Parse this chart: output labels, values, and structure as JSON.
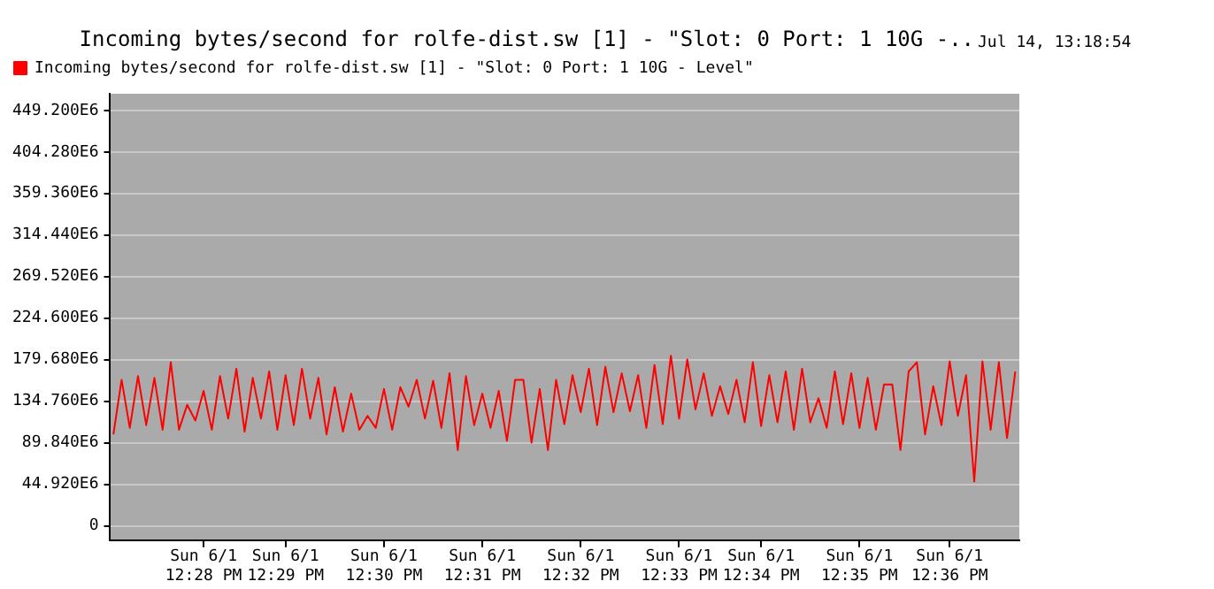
{
  "chart_data": {
    "type": "line",
    "title": "Incoming bytes/second for rolfe-dist.sw [1] - \"Slot: 0 Port: 1 10G -..",
    "annotations": [
      "Jul 14, 13:18:54"
    ],
    "legend": "top left",
    "grid": "y",
    "marker": "none",
    "line_style": "solid",
    "categories": [
      null,
      null,
      null,
      null,
      null,
      null,
      null,
      null,
      null,
      null,
      null,
      "Sun 6/1\n12:28 PM",
      null,
      null,
      null,
      null,
      null,
      null,
      null,
      null,
      null,
      "Sun 6/1\n12:29 PM",
      null,
      null,
      null,
      null,
      null,
      null,
      null,
      null,
      null,
      null,
      null,
      "Sun 6/1\n12:30 PM",
      null,
      null,
      null,
      null,
      null,
      null,
      null,
      null,
      null,
      null,
      null,
      "Sun 6/1\n12:31 PM",
      null,
      null,
      null,
      null,
      null,
      null,
      null,
      null,
      null,
      null,
      null,
      "Sun 6/1\n12:32 PM",
      null,
      null,
      null,
      null,
      null,
      null,
      null,
      null,
      null,
      null,
      null,
      "Sun 6/1\n12:33 PM",
      null,
      null,
      null,
      null,
      null,
      null,
      null,
      null,
      null,
      "Sun 6/1\n12:34 PM",
      null,
      null,
      null,
      null,
      null,
      null,
      null,
      null,
      null,
      null,
      null,
      "Sun 6/1\n12:35 PM",
      null,
      null,
      null,
      null,
      null,
      null,
      null,
      null,
      null,
      null,
      "Sun 6/1\n12:36 PM",
      null,
      null,
      null,
      null,
      null,
      null,
      null,
      null
    ],
    "ylim": [
      -15400000.0,
      467200000.0
    ],
    "yticks": [
      0,
      {
        "value": 44920000.0,
        "label": "44.920E6"
      },
      {
        "value": 89840000.0,
        "label": "89.840E6"
      },
      {
        "value": 134760000.0,
        "label": "134.760E6"
      },
      {
        "value": 179680000.0,
        "label": "179.680E6"
      },
      {
        "value": 224600000.0,
        "label": "224.600E6"
      },
      {
        "value": 269520000.0,
        "label": "269.520E6"
      },
      {
        "value": 314440000.0,
        "label": "314.440E6"
      },
      {
        "value": 359360000.0,
        "label": "359.360E6"
      },
      {
        "value": 404280000.0,
        "label": "404.280E6"
      },
      {
        "value": 449200000.0,
        "label": "449.200E6"
      }
    ],
    "series": [
      {
        "name": "Incoming bytes/second for rolfe-dist.sw [1] - \"Slot: 0 Port: 1 10G - Level\"",
        "color": "#ff0000",
        "values": [
          99000000.0,
          158000000.0,
          106000000.0,
          162000000.0,
          109000000.0,
          160000000.0,
          104000000.0,
          177000000.0,
          104000000.0,
          131000000.0,
          114000000.0,
          146000000.0,
          104000000.0,
          162000000.0,
          116000000.0,
          170000000.0,
          102000000.0,
          160000000.0,
          116000000.0,
          167000000.0,
          104000000.0,
          163000000.0,
          109000000.0,
          170000000.0,
          116000000.0,
          160000000.0,
          99000000.0,
          150000000.0,
          102000000.0,
          143000000.0,
          104000000.0,
          119000000.0,
          106000000.0,
          148000000.0,
          104000000.0,
          150000000.0,
          129000000.0,
          158000000.0,
          116000000.0,
          157000000.0,
          106000000.0,
          165000000.0,
          82000000.0,
          162000000.0,
          109000000.0,
          143000000.0,
          106000000.0,
          146000000.0,
          92000000.0,
          158000000.0,
          158000000.0,
          90000000.0,
          148000000.0,
          82000000.0,
          158000000.0,
          110000000.0,
          163000000.0,
          123000000.0,
          170000000.0,
          109000000.0,
          172000000.0,
          123000000.0,
          165000000.0,
          124000000.0,
          163000000.0,
          106000000.0,
          174000000.0,
          110000000.0,
          184000000.0,
          116000000.0,
          180000000.0,
          126000000.0,
          165000000.0,
          119000000.0,
          151000000.0,
          121000000.0,
          158000000.0,
          112000000.0,
          177000000.0,
          108000000.0,
          163000000.0,
          112000000.0,
          167000000.0,
          104000000.0,
          170000000.0,
          112000000.0,
          138000000.0,
          106000000.0,
          167000000.0,
          110000000.0,
          165000000.0,
          106000000.0,
          160000000.0,
          104000000.0,
          153000000.0,
          153000000.0,
          82000000.0,
          167000000.0,
          177000000.0,
          99000000.0,
          151000000.0,
          109000000.0,
          178000000.0,
          119000000.0,
          163000000.0,
          48000000.0,
          178000000.0,
          104000000.0,
          177000000.0,
          95000000.0,
          167000000.0
        ]
      }
    ]
  }
}
